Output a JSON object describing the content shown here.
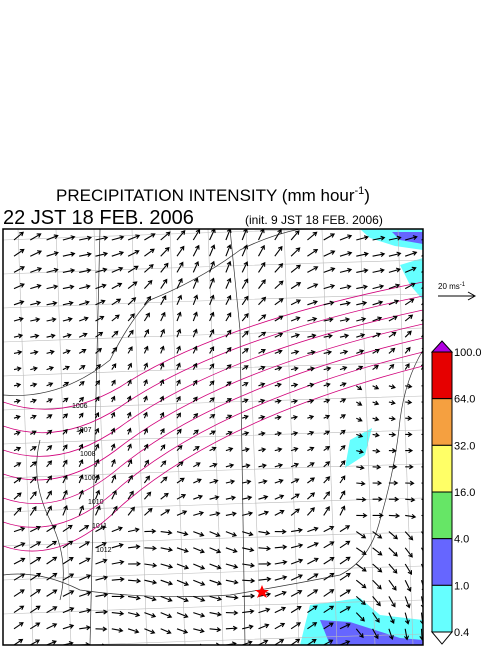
{
  "header": {
    "title": {
      "text": "PRECIPITATION INTENSITY (mm hour",
      "sup": "-1",
      "end": ")"
    },
    "valid": "22 JST 18 FEB. 2006",
    "init": "(init. 9 JST 18 FEB. 2006)"
  },
  "scale_arrow": {
    "text": "20 ms",
    "sup": "-1"
  },
  "isobars": [
    "1006",
    "1007",
    "1008",
    "1009",
    "1010",
    "1011",
    "1012"
  ],
  "colorbar": {
    "labels": [
      "100.0",
      "64.0",
      "32.0",
      "16.0",
      "4.0",
      "1.0",
      "0.4"
    ],
    "colors": [
      "#e60000",
      "#f5a040",
      "#ffff66",
      "#66e666",
      "#6666ff",
      "#66ffff"
    ],
    "over": "#b000e0",
    "under": "#ffffff"
  }
}
